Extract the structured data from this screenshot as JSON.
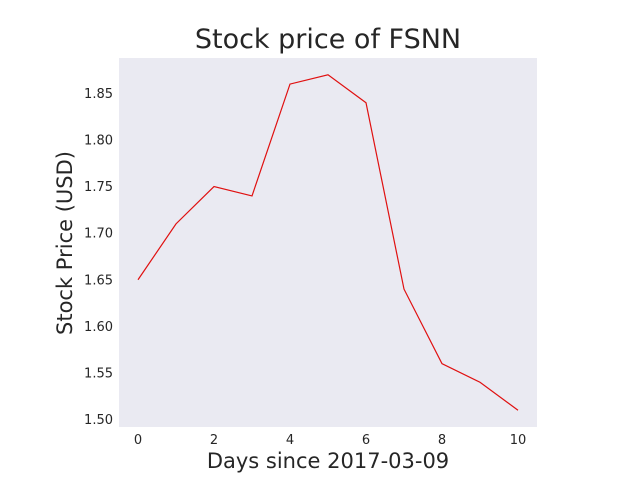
{
  "chart_data": {
    "type": "line",
    "title": "Stock price of FSNN",
    "xlabel": "Days since 2017-03-09",
    "ylabel": "Stock Price (USD)",
    "x": [
      0,
      1,
      2,
      3,
      4,
      5,
      6,
      7,
      8,
      9,
      10
    ],
    "series": [
      {
        "values": [
          1.65,
          1.71,
          1.75,
          1.74,
          1.86,
          1.87,
          1.84,
          1.64,
          1.56,
          1.54,
          1.51
        ]
      }
    ],
    "xticks": [
      "0",
      "2",
      "4",
      "6",
      "8",
      "10"
    ],
    "yticks": [
      "1.50",
      "1.55",
      "1.60",
      "1.65",
      "1.70",
      "1.75",
      "1.80",
      "1.85"
    ],
    "xlim": [
      -0.5,
      10.5
    ],
    "ylim": [
      1.492,
      1.888
    ],
    "grid": false,
    "colors": {
      "plot_background": "#eaeaf2",
      "line": "#e01010",
      "text": "#262626"
    }
  }
}
